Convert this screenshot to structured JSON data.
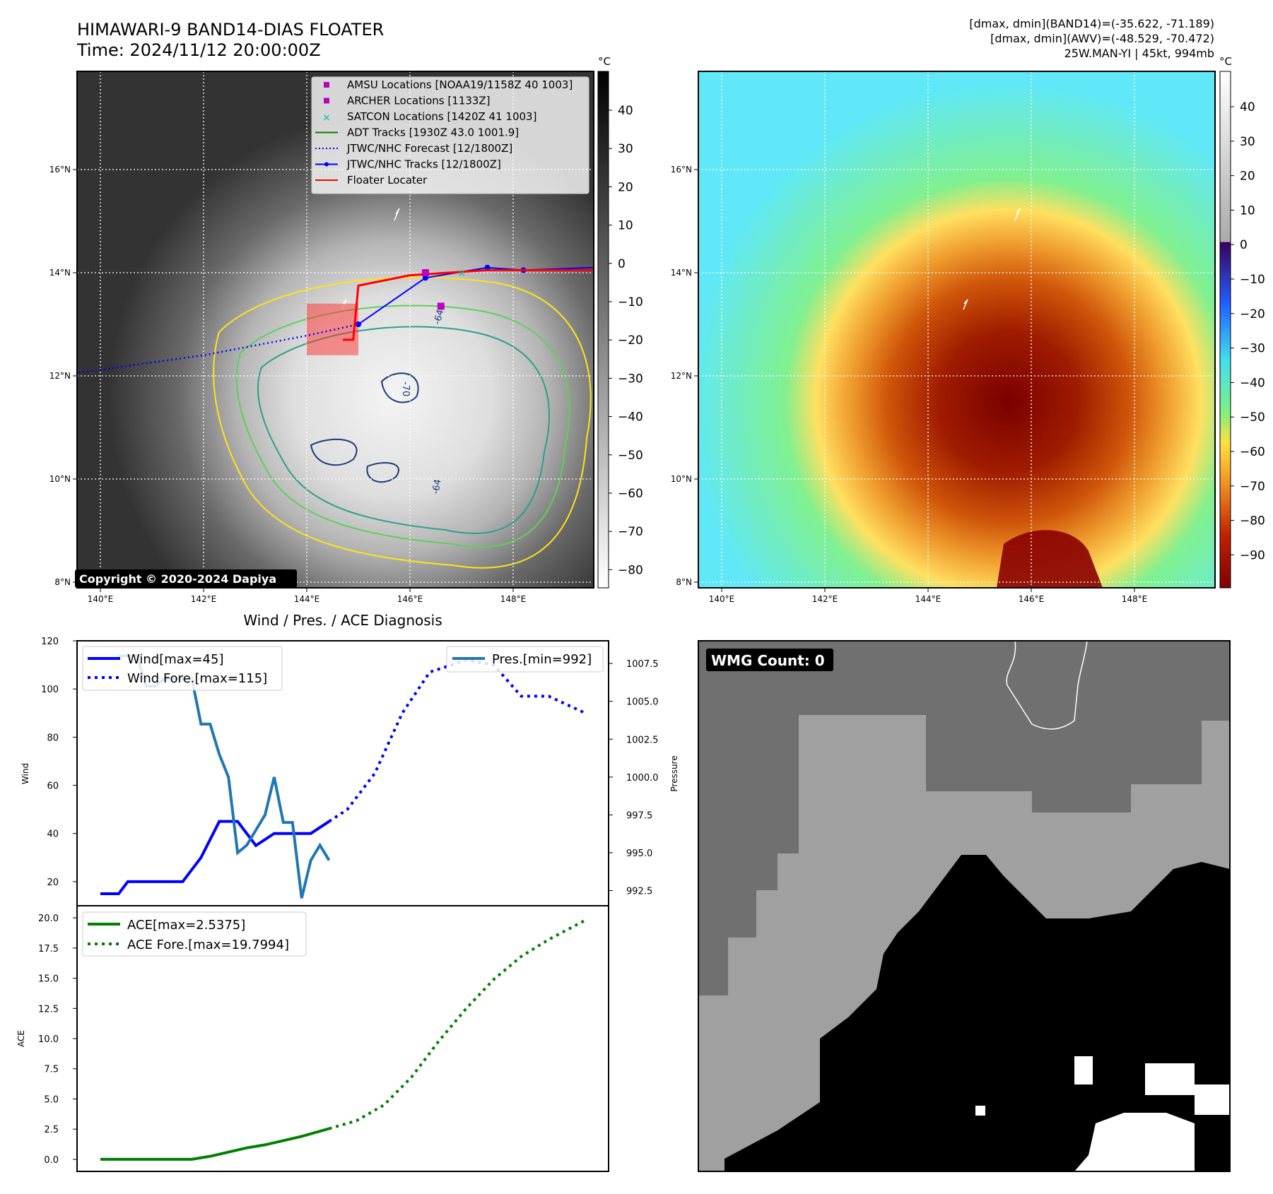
{
  "header": {
    "title_line1": "HIMAWARI-9 BAND14-DIAS FLOATER",
    "title_line2": "Time: 2024/11/12 20:00:00Z",
    "stat_line1": "[dmax, dmin](BAND14)=(-35.622, -71.189)",
    "stat_line2": "[dmax, dmin](AWV)=(-48.529, -70.472)",
    "stat_line3": "25W.MAN-YI | 45kt, 994mb"
  },
  "map": {
    "lon_labels": [
      "140°E",
      "142°E",
      "144°E",
      "146°E",
      "148°E"
    ],
    "lat_labels": [
      "8°N",
      "10°N",
      "12°N",
      "14°N",
      "16°N"
    ],
    "colorbar_unit": "°C",
    "band14_colorbar_ticks": [
      "40",
      "30",
      "20",
      "10",
      "0",
      "−10",
      "−20",
      "−30",
      "−40",
      "−50",
      "−60",
      "−70",
      "−80"
    ],
    "awv_colorbar_ticks": [
      "40",
      "30",
      "20",
      "10",
      "0",
      "−10",
      "−20",
      "−30",
      "−40",
      "−50",
      "−60",
      "−70",
      "−80",
      "−90"
    ],
    "copyright": "Copyright © 2020-2024 Dapiya",
    "contour_label_a": "-64",
    "contour_label_b": "-70",
    "contour_label_c": "-64",
    "colors": {
      "coast": "#ffffff",
      "contour_yellow": "#ffe21a",
      "contour_green": "#5fcf5a",
      "contour_teal": "#2aa08a",
      "contour_navy": "#1a3b7a"
    },
    "legend": [
      {
        "label": "AMSU Locations [NOAA19/1158Z 40 1003]",
        "symbol": "square",
        "color": "#c000c0"
      },
      {
        "label": "ARCHER Locations [1133Z]",
        "symbol": "square",
        "color": "#c000c0"
      },
      {
        "label": "SATCON Locations [1420Z 41 1003]",
        "symbol": "x",
        "color": "#00b8b8"
      },
      {
        "label": "ADT Tracks [1930Z 43.0 1001.9]",
        "symbol": "line",
        "color": "#008000"
      },
      {
        "label": "JTWC/NHC Forecast [12/1800Z]",
        "symbol": "dotted",
        "color": "#0000ff"
      },
      {
        "label": "JTWC/NHC Tracks [12/1800Z]",
        "symbol": "line-dot",
        "color": "#0000ff"
      },
      {
        "label": "Floater Locater",
        "symbol": "line",
        "color": "#ff0000"
      }
    ],
    "tracks": {
      "forecast": [
        [
          139.5,
          12.05
        ],
        [
          142,
          12.4
        ],
        [
          144,
          12.78
        ],
        [
          145,
          13.0
        ]
      ],
      "jtwc": [
        [
          145,
          13.0
        ],
        [
          146.3,
          13.9
        ],
        [
          147.5,
          14.1
        ],
        [
          148.2,
          14.05
        ],
        [
          149.6,
          14.1
        ]
      ],
      "floater": [
        [
          144.7,
          12.7
        ],
        [
          144.9,
          12.7
        ],
        [
          145.0,
          13.75
        ],
        [
          146.0,
          13.95
        ],
        [
          147.5,
          14.05
        ],
        [
          149.6,
          14.05
        ]
      ],
      "floater_box": [
        [
          144.0,
          12.4
        ],
        [
          145.0,
          13.4
        ]
      ],
      "amsu_archer": [
        [
          146.3,
          14.0
        ],
        [
          146.6,
          13.35
        ]
      ],
      "satcon": [
        [
          147.0,
          14.0
        ]
      ]
    }
  },
  "wmg": {
    "label": "WMG Count: 0"
  },
  "chart_data": [
    {
      "type": "line",
      "title": "Wind / Pres. / ACE Diagnosis",
      "ylabel": "Wind",
      "y2label": "Pressure",
      "ylim": [
        10,
        120
      ],
      "y2lim": [
        991.5,
        1009.0
      ],
      "yticks": [
        "120",
        "100",
        "80",
        "60",
        "40",
        "20"
      ],
      "y2ticks": [
        "1007.5",
        "1005.0",
        "1002.5",
        "1000.0",
        "997.5",
        "995.0",
        "992.5"
      ],
      "legend_left": [
        "Wind[max=45]",
        "Wind Fore.[max=115]"
      ],
      "legend_right": [
        "Pres.[min=992]"
      ],
      "series": [
        {
          "name": "Wind[max=45]",
          "color": "#0000ff",
          "style": "solid",
          "x": [
            0,
            2,
            3,
            5,
            7,
            9,
            11,
            13,
            15,
            17,
            19,
            21,
            23,
            25
          ],
          "values": [
            15,
            15,
            20,
            20,
            20,
            20,
            30,
            45,
            45,
            35,
            40,
            40,
            40,
            45
          ]
        },
        {
          "name": "Wind Fore.[max=115]",
          "color": "#0000ff",
          "style": "dotted",
          "x": [
            25,
            27,
            30,
            33,
            36,
            40,
            43,
            46,
            49,
            53
          ],
          "values": [
            45,
            50,
            65,
            90,
            107,
            112,
            110,
            97,
            97,
            90
          ]
        },
        {
          "name": "Pres.[min=992]",
          "color": "#1f77b4",
          "style": "solid",
          "axis": "right",
          "x": [
            2,
            4,
            5,
            6,
            7,
            8,
            10,
            11,
            12,
            13,
            14,
            15,
            16,
            17,
            18,
            19,
            20,
            21,
            22,
            23,
            24,
            25
          ],
          "values": [
            1008.0,
            1008.0,
            1006.0,
            1006.0,
            1006.5,
            1006.5,
            1006.5,
            1003.5,
            1003.5,
            1001.5,
            1000.0,
            995.0,
            995.5,
            996.5,
            997.5,
            1000.0,
            997.0,
            997.0,
            992.0,
            994.5,
            995.5,
            994.5
          ]
        }
      ]
    },
    {
      "type": "line",
      "ylabel": "ACE",
      "ylim": [
        -1.0,
        21.0
      ],
      "yticks": [
        "20.0",
        "17.5",
        "15.0",
        "12.5",
        "10.0",
        "7.5",
        "5.0",
        "2.5",
        "0.0"
      ],
      "legend": [
        "ACE[max=2.5375]",
        "ACE Fore.[max=19.7994]"
      ],
      "series": [
        {
          "name": "ACE[max=2.5375]",
          "color": "#008000",
          "style": "solid",
          "x": [
            0,
            2,
            4,
            6,
            8,
            10,
            12,
            14,
            16,
            18,
            20,
            22,
            25
          ],
          "values": [
            0.0,
            0.0,
            0.0,
            0.0,
            0.0,
            0.0,
            0.25,
            0.6,
            0.95,
            1.2,
            1.55,
            1.9,
            2.54
          ]
        },
        {
          "name": "ACE Fore.[max=19.7994]",
          "color": "#008000",
          "style": "dotted",
          "x": [
            25,
            28,
            31,
            34,
            37,
            40,
            43,
            46,
            49,
            53
          ],
          "values": [
            2.54,
            3.2,
            4.5,
            6.8,
            9.8,
            12.5,
            14.9,
            16.8,
            18.2,
            19.8
          ]
        }
      ]
    }
  ]
}
